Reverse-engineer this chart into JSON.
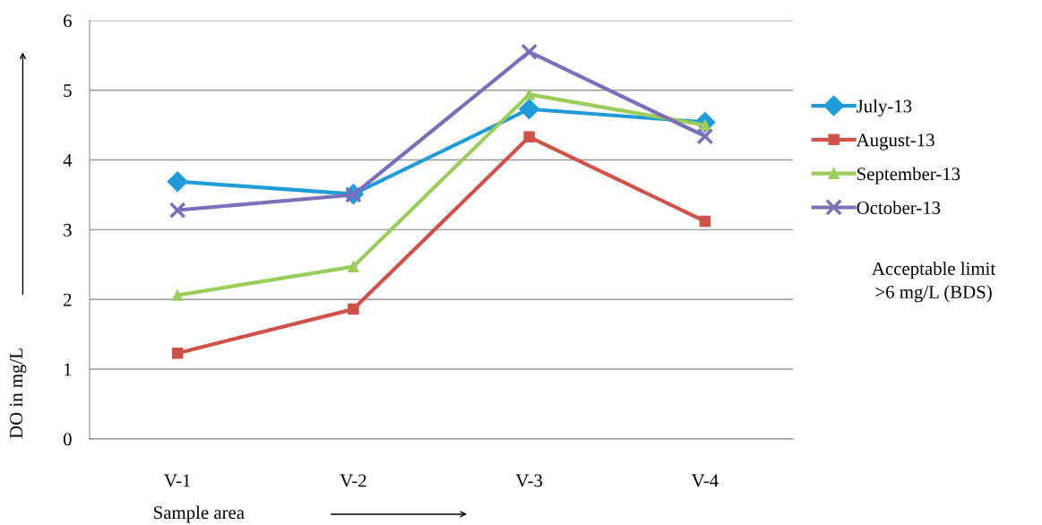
{
  "chart_data": {
    "type": "line",
    "ylabel": "DO in mg/L",
    "xlabel": "Sample area",
    "categories": [
      "V-1",
      "V-2",
      "V-3",
      "V-4"
    ],
    "series": [
      {
        "name": "July-13",
        "color": "#1f9bd7",
        "marker": "diamond",
        "values": [
          3.69,
          3.51,
          4.73,
          4.54
        ]
      },
      {
        "name": "August-13",
        "color": "#d0504a",
        "marker": "square",
        "values": [
          1.23,
          1.86,
          4.33,
          3.12
        ]
      },
      {
        "name": "September-13",
        "color": "#9ccc5a",
        "marker": "triangle",
        "values": [
          2.06,
          2.47,
          4.94,
          4.5
        ]
      },
      {
        "name": "October-13",
        "color": "#7b6fb8",
        "marker": "cross",
        "values": [
          3.28,
          3.5,
          5.55,
          4.34
        ]
      }
    ],
    "ylim": [
      0,
      6
    ],
    "yticks": [
      0,
      1,
      2,
      3,
      4,
      5,
      6
    ],
    "grid": "y",
    "legend": "right",
    "line_style": "solid",
    "annotations": [
      "Acceptable limit\n>6 mg/L (BDS)"
    ]
  }
}
